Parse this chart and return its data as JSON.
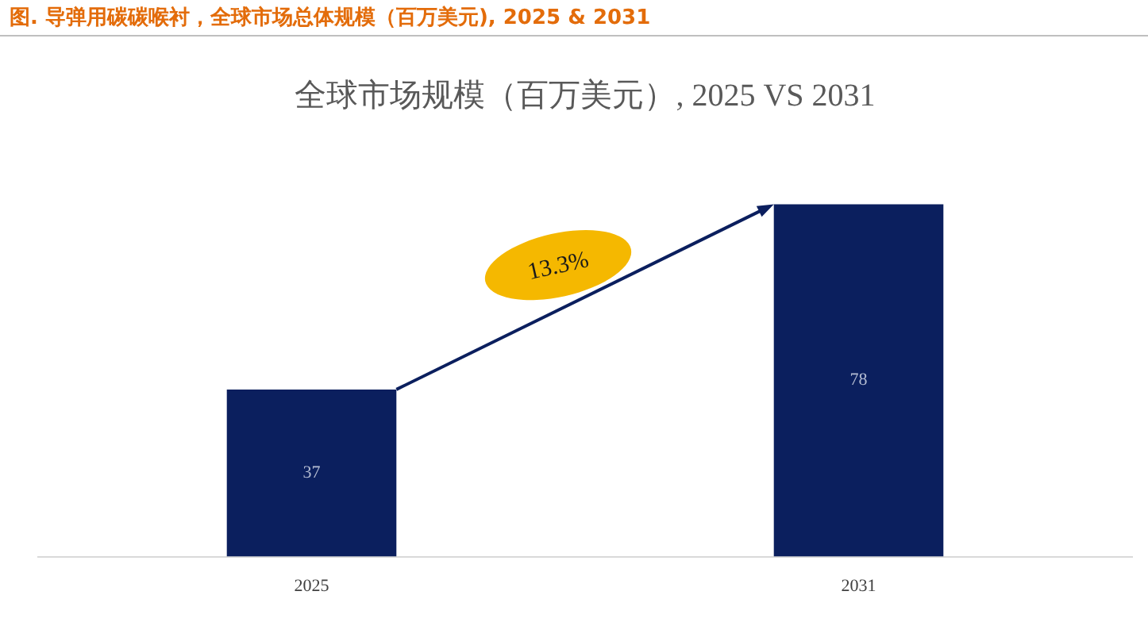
{
  "chart_data": {
    "type": "bar",
    "title": "图.   导弹用碳碳喉衬，全球市场总体规模（百万美元), 2025 & 2031",
    "subtitle": "全球市场规模（百万美元）, 2025 VS 2031",
    "categories": [
      "2025",
      "2031"
    ],
    "values": [
      37,
      78
    ],
    "color": "#0b1f5e",
    "data_labels": true,
    "grid": false,
    "legend": false,
    "annotations": [
      "13.3%"
    ]
  }
}
